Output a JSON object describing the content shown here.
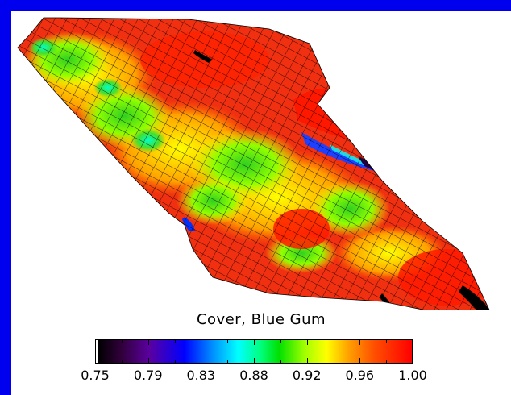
{
  "colorbar": {
    "title": "Cover, Blue Gum",
    "tick_labels": [
      "0.75",
      "0.79",
      "0.83",
      "0.88",
      "0.92",
      "0.96",
      "1.00"
    ],
    "min": 0.75,
    "max": 1.0
  },
  "colors": {
    "background_border": "#0000ee",
    "panel": "#ffffff",
    "mesh_line": "#000000"
  }
}
